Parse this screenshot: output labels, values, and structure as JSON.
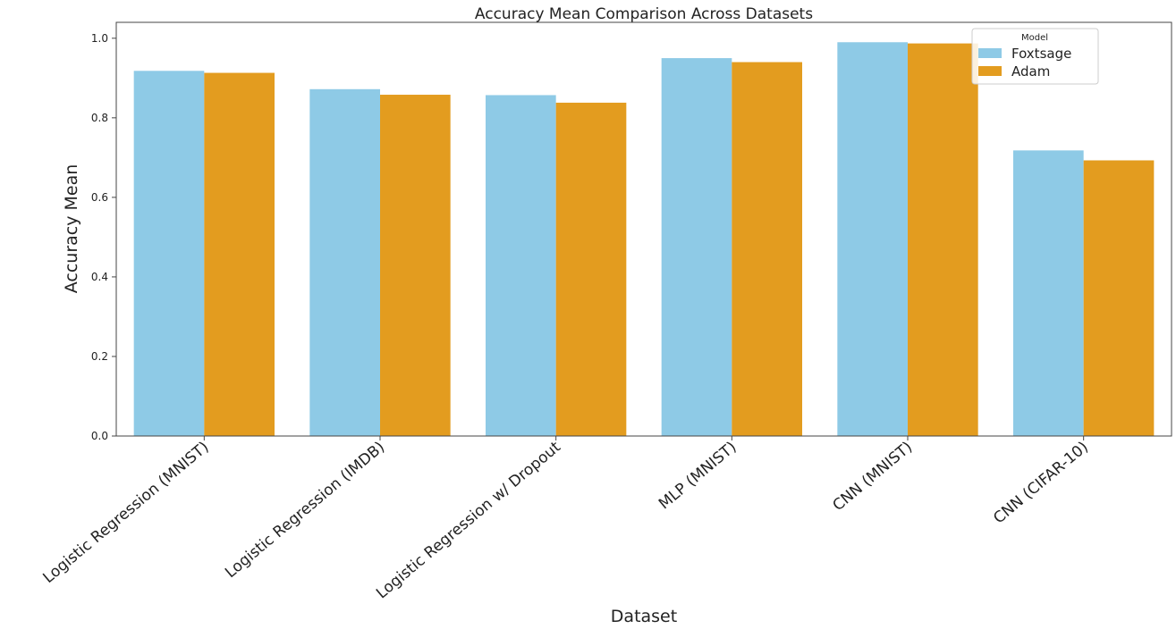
{
  "chart_data": {
    "type": "bar",
    "title": "Accuracy Mean Comparison Across Datasets",
    "xlabel": "Dataset",
    "ylabel": "Accuracy Mean",
    "ylim": [
      0,
      1.04
    ],
    "yticks": [
      "0.0",
      "0.2",
      "0.4",
      "0.6",
      "0.8",
      "1.0"
    ],
    "categories": [
      "Logistic Regression (MNIST)",
      "Logistic Regression (IMDB)",
      "Logistic Regression w/ Dropout",
      "MLP (MNIST)",
      "CNN (MNIST)",
      "CNN (CIFAR-10)"
    ],
    "legend_title": "Model",
    "legend_position": "top-right",
    "grid": false,
    "series": [
      {
        "name": "Foxtsage",
        "color": "#8ecae6",
        "values": [
          0.918,
          0.872,
          0.857,
          0.95,
          0.99,
          0.718
        ]
      },
      {
        "name": "Adam",
        "color": "#e39c1f",
        "values": [
          0.913,
          0.858,
          0.838,
          0.94,
          0.987,
          0.693
        ]
      }
    ]
  }
}
